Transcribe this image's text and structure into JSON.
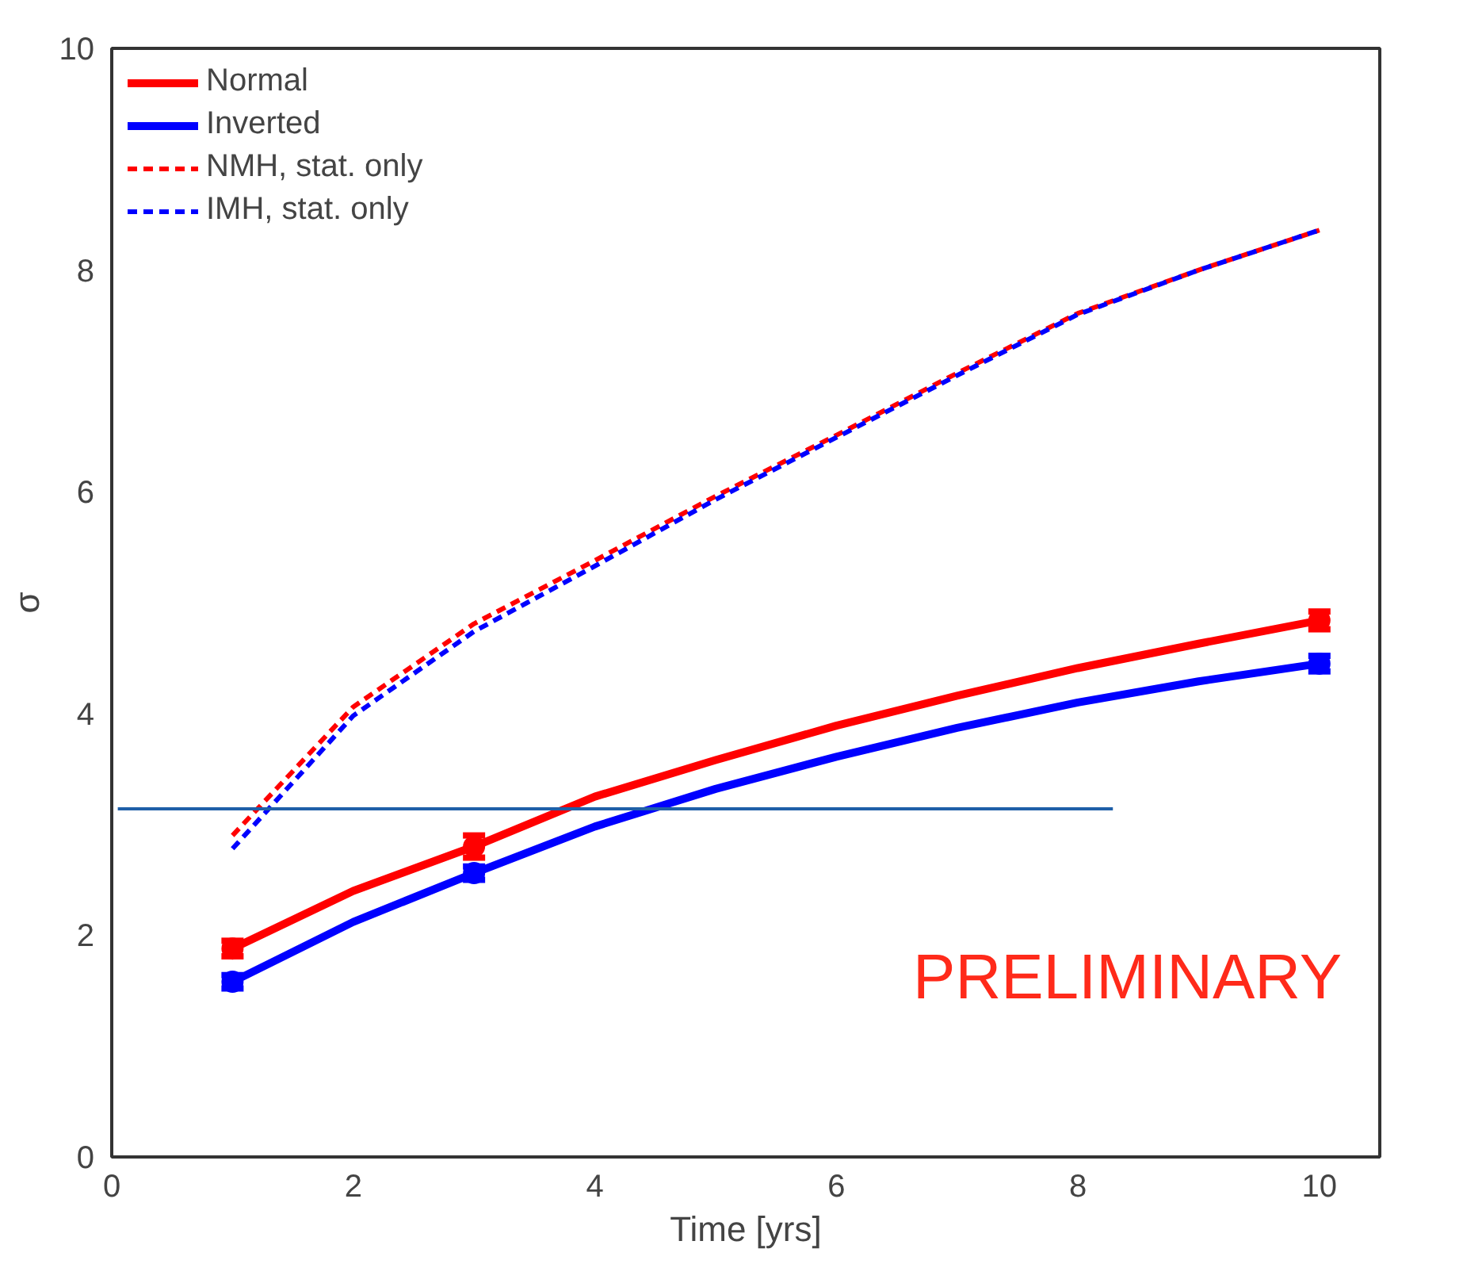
{
  "chart_data": {
    "type": "line",
    "xlabel": "Time [yrs]",
    "ylabel": "σ",
    "xlim": [
      0,
      10.5
    ],
    "ylim": [
      0,
      10
    ],
    "xticks": [
      0,
      2,
      4,
      6,
      8,
      10
    ],
    "yticks": [
      0,
      2,
      4,
      6,
      8,
      10
    ],
    "grid": false,
    "legend": "top left",
    "annotations": [
      "PRELIMINARY"
    ],
    "series": [
      {
        "name": "Normal",
        "color": "#ff0000",
        "line_style": "solid",
        "marker": "none",
        "x": [
          1,
          2,
          3,
          4,
          5,
          6,
          7,
          8,
          9,
          10
        ],
        "values": [
          1.88,
          2.4,
          2.8,
          3.25,
          3.58,
          3.89,
          4.16,
          4.41,
          4.63,
          4.84
        ]
      },
      {
        "name": "Inverted",
        "color": "#0000ff",
        "line_style": "solid",
        "marker": "none",
        "x": [
          1,
          2,
          3,
          4,
          5,
          6,
          7,
          8,
          9,
          10
        ],
        "values": [
          1.58,
          2.12,
          2.56,
          2.98,
          3.32,
          3.61,
          3.87,
          4.1,
          4.29,
          4.45
        ]
      },
      {
        "name": "NMH, stat. only",
        "color": "#ff0000",
        "line_style": "dashed",
        "marker": "none",
        "x": [
          1,
          2,
          3,
          4,
          5,
          6,
          7,
          8,
          9,
          10
        ],
        "values": [
          2.9,
          4.06,
          4.81,
          5.38,
          5.96,
          6.51,
          7.07,
          7.61,
          8.0,
          8.36
        ]
      },
      {
        "name": "IMH, stat. only",
        "color": "#0000ff",
        "line_style": "dashed",
        "marker": "none",
        "x": [
          1,
          2,
          3,
          4,
          5,
          6,
          7,
          8,
          9,
          10
        ],
        "values": [
          2.78,
          3.98,
          4.74,
          5.33,
          5.93,
          6.49,
          7.05,
          7.6,
          8.0,
          8.36
        ]
      },
      {
        "type": "scatter",
        "color": "#ff0000",
        "marker": "circle",
        "x": [
          1,
          3,
          10
        ],
        "values": [
          1.88,
          2.8,
          4.84
        ],
        "errors": [
          0.07,
          0.1,
          0.08
        ]
      },
      {
        "type": "scatter",
        "color": "#0000ff",
        "marker": "circle",
        "x": [
          1,
          3,
          10
        ],
        "values": [
          1.58,
          2.56,
          4.45
        ],
        "errors": [
          0.06,
          0.06,
          0.07
        ]
      },
      {
        "color": "#1f5fa8",
        "line_style": "solid",
        "marker": "none",
        "x": [
          0.05,
          8.29
        ],
        "values": [
          3.14,
          3.14
        ]
      }
    ]
  }
}
